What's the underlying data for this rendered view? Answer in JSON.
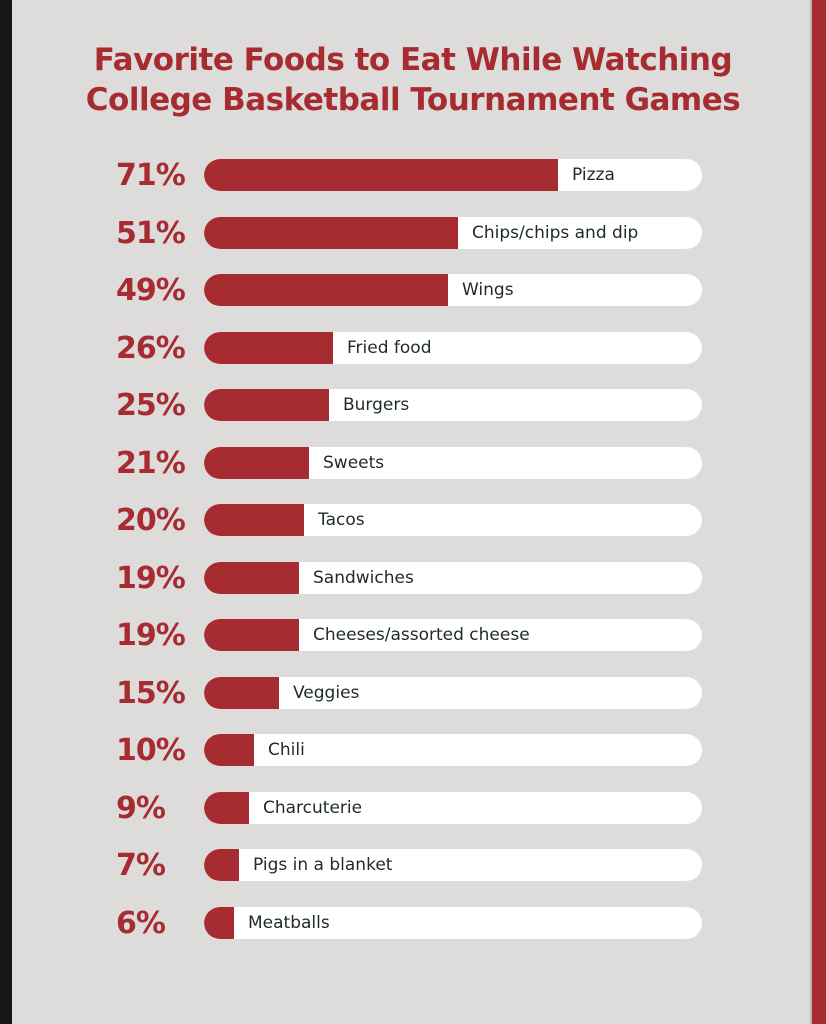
{
  "colors": {
    "background": "#dedcdb",
    "accent": "#a72c31",
    "track": "#ffffff",
    "label_text": "#1f2a2a"
  },
  "chart_data": {
    "type": "bar",
    "orientation": "horizontal",
    "title_lines": [
      "Favorite Foods to Eat While Watching",
      "College Basketball Tournament Games"
    ],
    "xlim": [
      0,
      100
    ],
    "grid": false,
    "categories": [
      "Pizza",
      "Chips/chips and dip",
      "Wings",
      "Fried food",
      "Burgers",
      "Sweets",
      "Tacos",
      "Sandwiches",
      "Cheeses/assorted cheese",
      "Veggies",
      "Chili",
      "Charcuterie",
      "Pigs in a blanket",
      "Meatballs"
    ],
    "values": [
      71,
      51,
      49,
      26,
      25,
      21,
      20,
      19,
      19,
      15,
      10,
      9,
      7,
      6
    ],
    "value_labels": [
      "71%",
      "51%",
      "49%",
      "26%",
      "25%",
      "21%",
      "20%",
      "19%",
      "19%",
      "15%",
      "10%",
      "9%",
      "7%",
      "6%"
    ]
  }
}
